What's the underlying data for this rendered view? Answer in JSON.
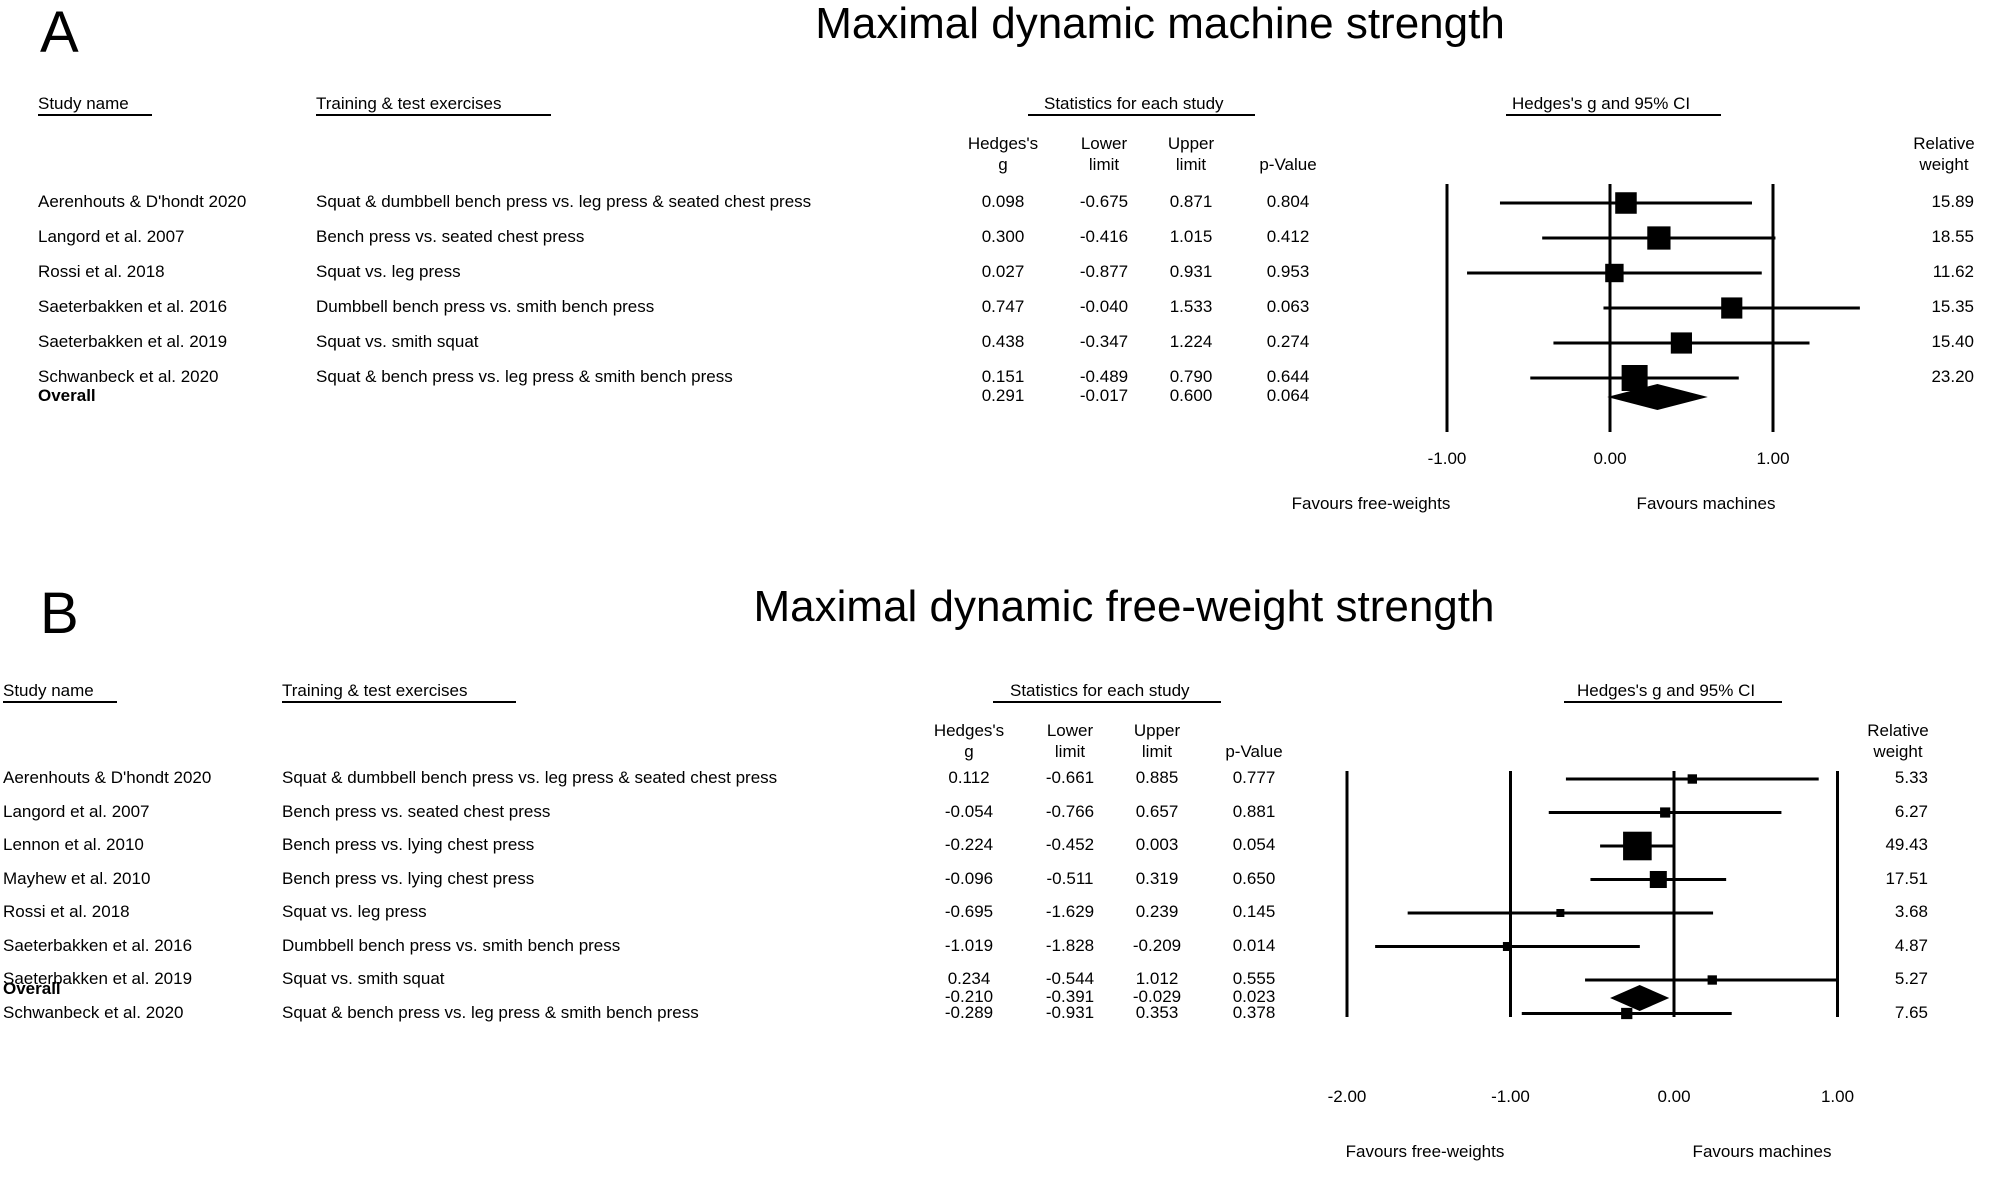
{
  "chart_data": [
    {
      "type": "forest",
      "panel_letter": "A",
      "title": "Maximal dynamic machine strength",
      "headers": {
        "study": "Study name",
        "exercise": "Training & test exercises",
        "stats": "Statistics for each study",
        "plot": "Hedges's g and 95% CI",
        "col_g": [
          "Hedges's",
          "g"
        ],
        "col_lower": [
          "Lower",
          "limit"
        ],
        "col_upper": [
          "Upper",
          "limit"
        ],
        "col_p": [
          "p-Value"
        ],
        "col_weight": [
          "Relative",
          "weight"
        ]
      },
      "rows": [
        {
          "study": "Aerenhouts & D'hondt 2020",
          "exercise": "Squat & dumbbell bench press vs. leg press & seated chest press",
          "g": "0.098",
          "lower": "-0.675",
          "upper": "0.871",
          "p": "0.804",
          "weight": "15.89"
        },
        {
          "study": "Langord et al. 2007",
          "exercise": "Bench press vs. seated chest press",
          "g": "0.300",
          "lower": "-0.416",
          "upper": "1.015",
          "p": "0.412",
          "weight": "18.55"
        },
        {
          "study": "Rossi et al. 2018",
          "exercise": "Squat vs. leg press",
          "g": "0.027",
          "lower": "-0.877",
          "upper": "0.931",
          "p": "0.953",
          "weight": "11.62"
        },
        {
          "study": "Saeterbakken et al. 2016",
          "exercise": "Dumbbell bench press vs. smith bench press",
          "g": "0.747",
          "lower": "-0.040",
          "upper": "1.533",
          "p": "0.063",
          "weight": "15.35"
        },
        {
          "study": "Saeterbakken et al. 2019",
          "exercise": "Squat vs. smith squat",
          "g": "0.438",
          "lower": "-0.347",
          "upper": "1.224",
          "p": "0.274",
          "weight": "15.40"
        },
        {
          "study": "Schwanbeck et al. 2020",
          "exercise": "Squat & bench press vs. leg press & smith bench press",
          "g": "0.151",
          "lower": "-0.489",
          "upper": "0.790",
          "p": "0.644",
          "weight": "23.20"
        }
      ],
      "overall": {
        "label": "Overall",
        "g": "0.291",
        "lower": "-0.017",
        "upper": "0.600",
        "p": "0.064"
      },
      "x_ticks": [
        "-1.00",
        "0.00",
        "1.00"
      ],
      "x_ticks_val": [
        -1,
        0,
        1
      ],
      "xlim": [
        -1.0,
        1.5
      ],
      "favours_left": "Favours free-weights",
      "favours_right": "Favours machines"
    },
    {
      "type": "forest",
      "panel_letter": "B",
      "title": "Maximal dynamic free-weight strength",
      "headers": {
        "study": "Study name",
        "exercise": "Training & test exercises",
        "stats": "Statistics for each study",
        "plot": "Hedges's g and 95% CI",
        "col_g": [
          "Hedges's",
          "g"
        ],
        "col_lower": [
          "Lower",
          "limit"
        ],
        "col_upper": [
          "Upper",
          "limit"
        ],
        "col_p": [
          "p-Value"
        ],
        "col_weight": [
          "Relative",
          "weight"
        ]
      },
      "rows": [
        {
          "study": "Aerenhouts & D'hondt 2020",
          "exercise": "Squat & dumbbell bench press vs. leg press & seated chest press",
          "g": "0.112",
          "lower": "-0.661",
          "upper": "0.885",
          "p": "0.777",
          "weight": "5.33"
        },
        {
          "study": "Langord et al. 2007",
          "exercise": "Bench press vs. seated chest press",
          "g": "-0.054",
          "lower": "-0.766",
          "upper": "0.657",
          "p": "0.881",
          "weight": "6.27"
        },
        {
          "study": "Lennon et al. 2010",
          "exercise": "Bench press vs. lying chest press",
          "g": "-0.224",
          "lower": "-0.452",
          "upper": "0.003",
          "p": "0.054",
          "weight": "49.43"
        },
        {
          "study": "Mayhew et al. 2010",
          "exercise": "Bench press vs. lying chest press",
          "g": "-0.096",
          "lower": "-0.511",
          "upper": "0.319",
          "p": "0.650",
          "weight": "17.51"
        },
        {
          "study": "Rossi et al. 2018",
          "exercise": "Squat vs. leg press",
          "g": "-0.695",
          "lower": "-1.629",
          "upper": "0.239",
          "p": "0.145",
          "weight": "3.68"
        },
        {
          "study": "Saeterbakken et al. 2016",
          "exercise": "Dumbbell bench press vs. smith bench press",
          "g": "-1.019",
          "lower": "-1.828",
          "upper": "-0.209",
          "p": "0.014",
          "weight": "4.87"
        },
        {
          "study": "Saeterbakken et al. 2019",
          "exercise": "Squat vs. smith squat",
          "g": "0.234",
          "lower": "-0.544",
          "upper": "1.012",
          "p": "0.555",
          "weight": "5.27"
        },
        {
          "study": "Schwanbeck et al. 2020",
          "exercise": "Squat & bench press vs. leg press & smith bench press",
          "g": "-0.289",
          "lower": "-0.931",
          "upper": "0.353",
          "p": "0.378",
          "weight": "7.65"
        }
      ],
      "overall": {
        "label": "Overall",
        "g": "-0.210",
        "lower": "-0.391",
        "upper": "-0.029",
        "p": "0.023"
      },
      "x_ticks": [
        "-2.00",
        "-1.00",
        "0.00",
        "1.00"
      ],
      "x_ticks_val": [
        -2,
        -1,
        0,
        1
      ],
      "xlim": [
        -2.0,
        1.0
      ],
      "favours_left": "Favours free-weights",
      "favours_right": "Favours machines"
    }
  ]
}
